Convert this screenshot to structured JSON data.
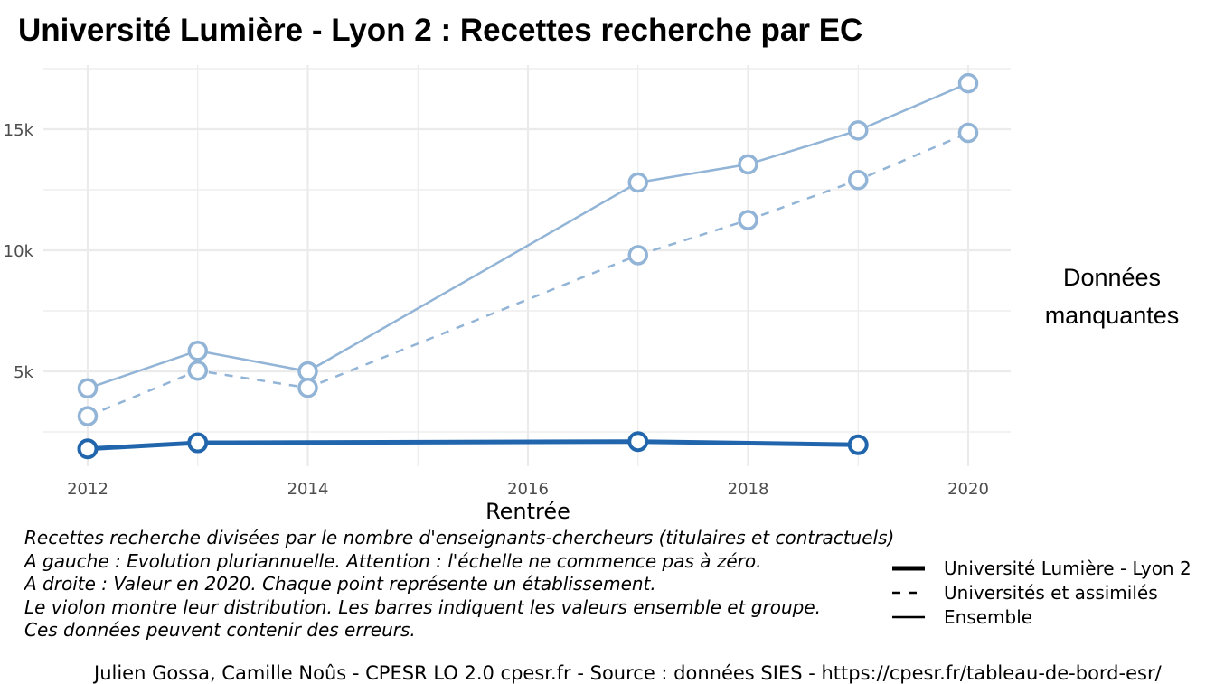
{
  "title": "Université Lumière - Lyon 2  :  Recettes recherche par EC",
  "side_note": [
    "Données",
    "manquantes"
  ],
  "caption": [
    "Recettes recherche divisées par le nombre d'enseignants-chercheurs (titulaires et contractuels)",
    "A gauche : Evolution pluriannuelle. Attention : l'échelle ne commence pas à zéro.",
    "A droite : Valeur en 2020. Chaque point représente un établissement.",
    "Le violon montre leur distribution. Les barres indiquent les valeurs ensemble et groupe.",
    "Ces données peuvent contenir des erreurs."
  ],
  "footer": "Julien Gossa, Camille Noûs - CPESR LO 2.0 cpesr.fr - Source : données SIES - https://cpesr.fr/tableau-de-bord-esr/",
  "colors": {
    "strong": "#2166ac",
    "light": "#92b4d6",
    "grid": "#ebebeb"
  },
  "chart_data": {
    "type": "line",
    "title": "Université Lumière - Lyon 2  :  Recettes recherche par EC",
    "xlabel": "Rentrée",
    "ylabel": "",
    "xlim": [
      2012,
      2020
    ],
    "ylim": [
      900,
      17700
    ],
    "x_ticks": [
      2012,
      2014,
      2016,
      2018,
      2020
    ],
    "x_tick_labels": [
      "2012",
      "2014",
      "2016",
      "2018",
      "2020"
    ],
    "y_ticks": [
      5000,
      10000,
      15000
    ],
    "y_tick_labels": [
      "5k",
      "10k",
      "15k"
    ],
    "grid": true,
    "legend_position": "bottom-right",
    "series": [
      {
        "name": "Université Lumière - Lyon 2",
        "style": "solid-thick",
        "x": [
          2012,
          2013,
          2017,
          2019
        ],
        "y": [
          1800,
          2050,
          2100,
          1970
        ]
      },
      {
        "name": "Universités et assimilés",
        "style": "dashed",
        "x": [
          2012,
          2013,
          2014,
          2017,
          2018,
          2019,
          2020
        ],
        "y": [
          3150,
          5030,
          4320,
          9800,
          11250,
          12900,
          14850
        ]
      },
      {
        "name": "Ensemble",
        "style": "solid",
        "x": [
          2012,
          2013,
          2014,
          2017,
          2018,
          2019,
          2020
        ],
        "y": [
          4300,
          5850,
          5000,
          12800,
          13550,
          14950,
          16900
        ]
      }
    ]
  }
}
